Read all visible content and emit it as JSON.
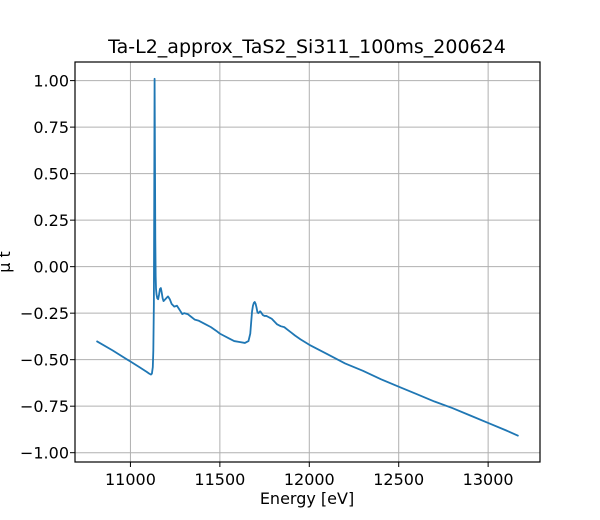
{
  "chart_data": {
    "type": "line",
    "title": "Ta-L2_approx_TaS2_Si311_100ms_200624",
    "xlabel": "Energy [eV]",
    "ylabel": "μ t",
    "xlim": [
      10690,
      13290
    ],
    "ylim": [
      -1.05,
      1.1
    ],
    "xticks": [
      11000,
      11500,
      12000,
      12500,
      13000
    ],
    "yticks": [
      1.0,
      0.75,
      0.5,
      0.25,
      0.0,
      -0.25,
      -0.5,
      -0.75,
      -1.0
    ],
    "xtick_labels": [
      "11000",
      "11500",
      "12000",
      "12500",
      "13000"
    ],
    "ytick_labels": [
      "1.00",
      "0.75",
      "0.50",
      "0.25",
      "0.00",
      "−0.25",
      "−0.50",
      "−0.75",
      "−1.00"
    ],
    "grid": true,
    "series": [
      {
        "color": "#1f77b4",
        "x": [
          10810,
          10900,
          11000,
          11050,
          11090,
          11105,
          11115,
          11120,
          11125,
          11128,
          11131,
          11133,
          11135,
          11137,
          11139,
          11141,
          11143,
          11146,
          11150,
          11155,
          11160,
          11165,
          11170,
          11175,
          11180,
          11185,
          11190,
          11195,
          11200,
          11210,
          11220,
          11230,
          11245,
          11260,
          11270,
          11280,
          11290,
          11300,
          11320,
          11340,
          11360,
          11380,
          11400,
          11420,
          11450,
          11480,
          11500,
          11520,
          11550,
          11580,
          11610,
          11640,
          11660,
          11670,
          11675,
          11680,
          11685,
          11690,
          11695,
          11700,
          11705,
          11710,
          11715,
          11720,
          11725,
          11730,
          11740,
          11750,
          11760,
          11770,
          11780,
          11790,
          11800,
          11820,
          11840,
          11860,
          11880,
          11900,
          11920,
          11950,
          12000,
          12100,
          12200,
          12300,
          12400,
          12500,
          12600,
          12700,
          12800,
          12900,
          13000,
          13100,
          13170
        ],
        "y": [
          -0.4,
          -0.45,
          -0.51,
          -0.54,
          -0.565,
          -0.575,
          -0.58,
          -0.575,
          -0.54,
          -0.45,
          -0.2,
          0.35,
          1.01,
          0.6,
          0.15,
          -0.05,
          -0.12,
          -0.15,
          -0.17,
          -0.175,
          -0.15,
          -0.12,
          -0.115,
          -0.14,
          -0.17,
          -0.185,
          -0.18,
          -0.175,
          -0.17,
          -0.16,
          -0.175,
          -0.2,
          -0.215,
          -0.21,
          -0.225,
          -0.24,
          -0.255,
          -0.25,
          -0.255,
          -0.27,
          -0.285,
          -0.29,
          -0.3,
          -0.31,
          -0.325,
          -0.345,
          -0.36,
          -0.37,
          -0.385,
          -0.4,
          -0.405,
          -0.41,
          -0.4,
          -0.36,
          -0.3,
          -0.24,
          -0.21,
          -0.195,
          -0.19,
          -0.2,
          -0.22,
          -0.245,
          -0.25,
          -0.245,
          -0.24,
          -0.245,
          -0.26,
          -0.265,
          -0.265,
          -0.27,
          -0.275,
          -0.28,
          -0.29,
          -0.31,
          -0.32,
          -0.325,
          -0.34,
          -0.355,
          -0.37,
          -0.39,
          -0.42,
          -0.47,
          -0.52,
          -0.56,
          -0.605,
          -0.645,
          -0.685,
          -0.725,
          -0.76,
          -0.8,
          -0.84,
          -0.88,
          -0.91
        ]
      }
    ]
  }
}
